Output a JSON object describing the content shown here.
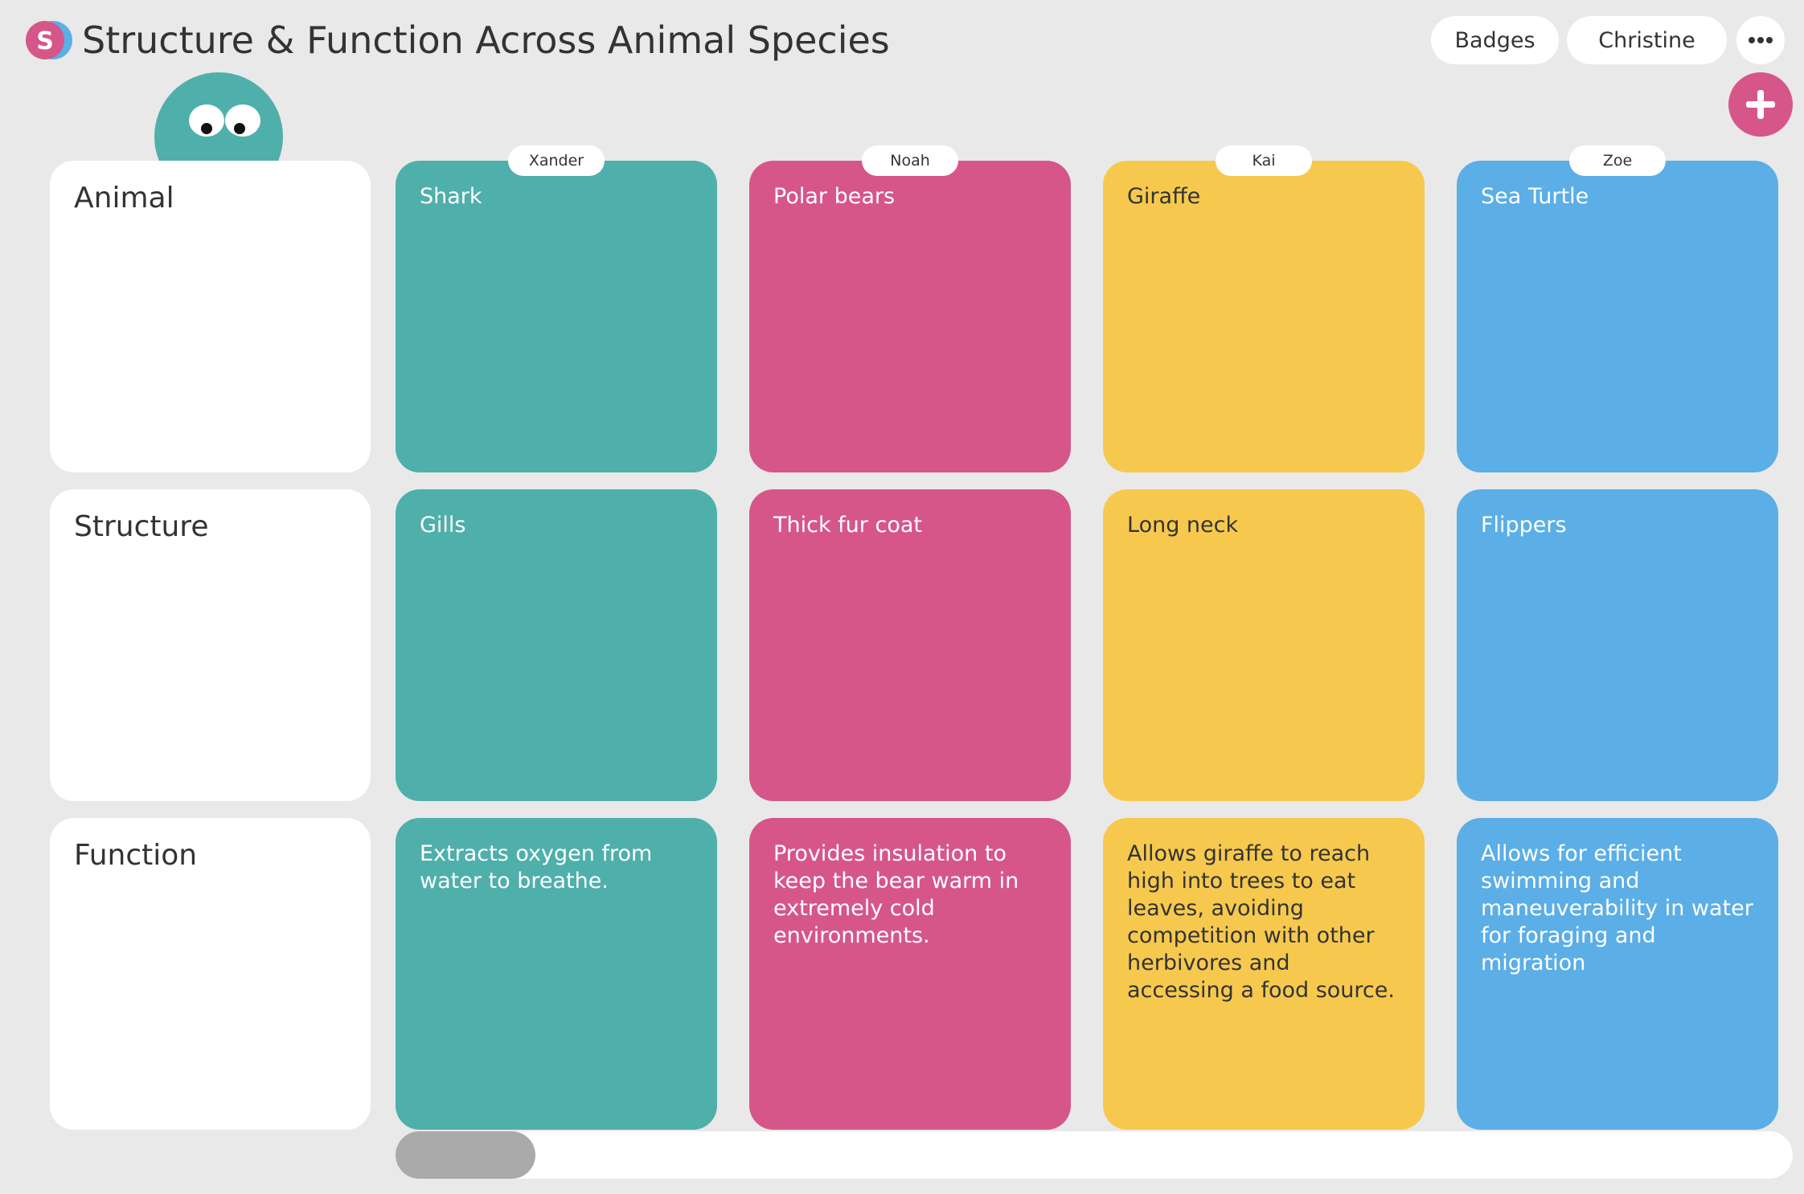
{
  "header": {
    "title": "Structure & Function Across Animal Species",
    "logo": "S",
    "buttons": [
      "Badges",
      "Christine"
    ]
  },
  "rows": [
    "Animal",
    "Structure",
    "Function"
  ],
  "columns": [
    {
      "author": "Xander",
      "color": "#4fafab",
      "cells": [
        "Shark",
        "Gills",
        "Extracts oxygen from water to breathe."
      ]
    },
    {
      "author": "Noah",
      "color": "#d6568a",
      "cells": [
        "Polar bears",
        "Thick fur coat",
        "Provides insulation to keep the bear warm in extremely cold environments."
      ]
    },
    {
      "author": "Kai",
      "color": "#f6c94e",
      "text_color": "#333",
      "cells": [
        "Giraffe",
        "Long neck",
        "Allows giraffe to reach high into trees to eat leaves, avoiding competition with other herbivores and accessing a food source."
      ]
    },
    {
      "author": "Zoe",
      "color": "#5baee6",
      "cells": [
        "Sea Turtle",
        "Flippers",
        "Allows for efficient swimming and maneuverability in water for foraging and migration"
      ]
    }
  ]
}
